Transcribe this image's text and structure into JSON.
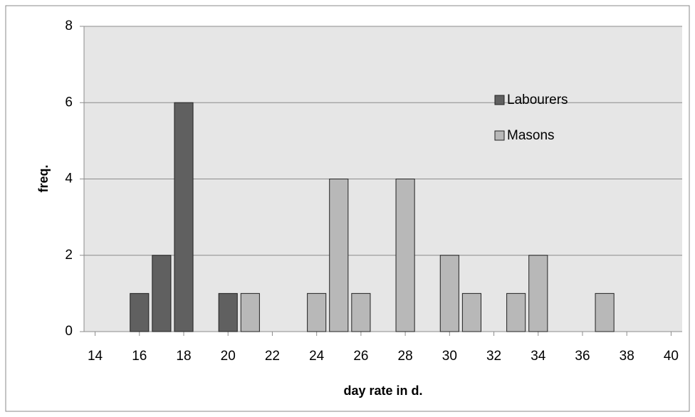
{
  "chart_data": {
    "type": "bar",
    "x_label": "day rate in d.",
    "y_label": "freq.",
    "xlim": [
      13.5,
      40.5
    ],
    "xticks": [
      14,
      16,
      18,
      20,
      22,
      24,
      26,
      28,
      30,
      32,
      34,
      36,
      38,
      40
    ],
    "ylim": [
      0,
      8
    ],
    "yticks": [
      0,
      2,
      4,
      6,
      8
    ],
    "grid": true,
    "legend": "upper right",
    "series": [
      {
        "name": "Labourers",
        "color": "#606060",
        "x": [
          16,
          17,
          18,
          20
        ],
        "values": [
          1,
          2,
          6,
          1
        ]
      },
      {
        "name": "Masons",
        "color": "#b8b8b8",
        "x": [
          21,
          24,
          25,
          26,
          28,
          30,
          31,
          33,
          34,
          37
        ],
        "values": [
          1,
          1,
          4,
          1,
          4,
          2,
          1,
          1,
          2,
          1
        ]
      }
    ]
  }
}
